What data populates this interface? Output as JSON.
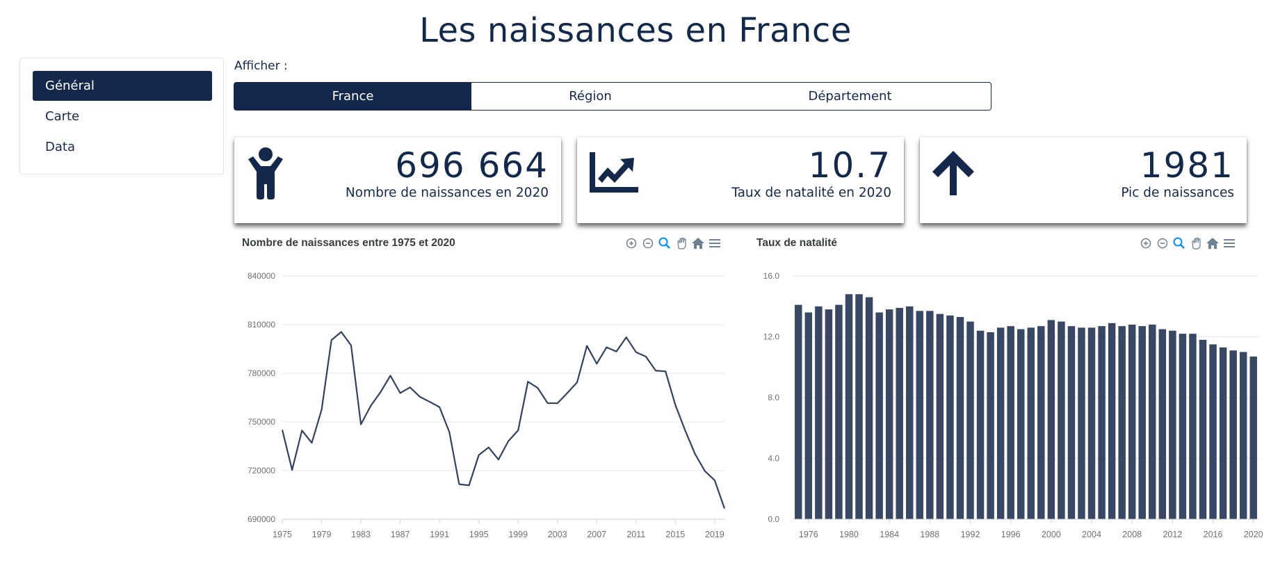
{
  "page_title": "Les naissances en France",
  "sidebar": {
    "items": [
      {
        "label": "Général",
        "active": true
      },
      {
        "label": "Carte",
        "active": false
      },
      {
        "label": "Data",
        "active": false
      }
    ]
  },
  "filter": {
    "label": "Afficher :",
    "options": [
      {
        "label": "France",
        "active": true
      },
      {
        "label": "Région",
        "active": false
      },
      {
        "label": "Département",
        "active": false
      }
    ]
  },
  "kpis": [
    {
      "value": "696 664",
      "label": "Nombre de naissances en 2020",
      "icon": "child-icon"
    },
    {
      "value": "10.7",
      "label": "Taux de natalité en 2020",
      "icon": "chart-line-icon"
    },
    {
      "value": "1981",
      "label": "Pic de naissances",
      "icon": "arrow-up-icon"
    }
  ],
  "colors": {
    "primary": "#13284a",
    "series": "#2f4260",
    "bars": "#384763",
    "grid": "#e6e6e6",
    "axis_text": "#6f6f6f",
    "toolbar": "#6e8192",
    "toolbar_active": "#008ffb"
  },
  "toolbar_icons": [
    "zoom-in-icon",
    "zoom-out-icon",
    "zoom-selection-icon",
    "pan-hand-icon",
    "reset-home-icon",
    "menu-icon"
  ],
  "chart_data": [
    {
      "type": "line",
      "title": "Nombre de naissances entre 1975 et 2020",
      "xlabel": "",
      "ylabel": "",
      "x": [
        1975,
        1976,
        1977,
        1978,
        1979,
        1980,
        1981,
        1982,
        1983,
        1984,
        1985,
        1986,
        1987,
        1988,
        1989,
        1990,
        1991,
        1992,
        1993,
        1994,
        1995,
        1996,
        1997,
        1998,
        1999,
        2000,
        2001,
        2002,
        2003,
        2004,
        2005,
        2006,
        2007,
        2008,
        2009,
        2010,
        2011,
        2012,
        2013,
        2014,
        2015,
        2016,
        2017,
        2018,
        2019,
        2020
      ],
      "x_ticks": [
        1975,
        1979,
        1983,
        1987,
        1991,
        1995,
        1999,
        2003,
        2007,
        2011,
        2015,
        2019
      ],
      "series": [
        {
          "values": [
            745100,
            720400,
            744700,
            737100,
            757400,
            800400,
            805500,
            797200,
            748500,
            759900,
            768400,
            778500,
            767800,
            771300,
            765500,
            762400,
            759100,
            743700,
            711600,
            710900,
            729600,
            734300,
            726800,
            738100,
            744800,
            774800,
            770900,
            761600,
            761500,
            767800,
            774400,
            796900,
            785900,
            796000,
            793400,
            802200,
            792996,
            790290,
            781621,
            781167,
            760421,
            744697,
            730242,
            719737,
            713992,
            696664
          ]
        }
      ],
      "ylim": [
        690000,
        840000
      ],
      "y_ticks": [
        690000,
        720000,
        750000,
        780000,
        810000,
        840000
      ],
      "grid": true
    },
    {
      "type": "bar",
      "title": "Taux de natalité",
      "xlabel": "",
      "ylabel": "",
      "categories": [
        1975,
        1976,
        1977,
        1978,
        1979,
        1980,
        1981,
        1982,
        1983,
        1984,
        1985,
        1986,
        1987,
        1988,
        1989,
        1990,
        1991,
        1992,
        1993,
        1994,
        1995,
        1996,
        1997,
        1998,
        1999,
        2000,
        2001,
        2002,
        2003,
        2004,
        2005,
        2006,
        2007,
        2008,
        2009,
        2010,
        2011,
        2012,
        2013,
        2014,
        2015,
        2016,
        2017,
        2018,
        2019,
        2020
      ],
      "x_ticks": [
        1976,
        1980,
        1984,
        1988,
        1992,
        1996,
        2000,
        2004,
        2008,
        2012,
        2016,
        2020
      ],
      "series": [
        {
          "values": [
            14.1,
            13.6,
            14.0,
            13.8,
            14.1,
            14.8,
            14.8,
            14.6,
            13.6,
            13.8,
            13.9,
            14.0,
            13.7,
            13.7,
            13.5,
            13.4,
            13.3,
            13.0,
            12.4,
            12.3,
            12.6,
            12.7,
            12.5,
            12.6,
            12.7,
            13.1,
            13.0,
            12.7,
            12.6,
            12.6,
            12.7,
            12.9,
            12.7,
            12.8,
            12.7,
            12.8,
            12.5,
            12.4,
            12.2,
            12.2,
            11.8,
            11.5,
            11.3,
            11.1,
            11.0,
            10.7
          ]
        }
      ],
      "ylim": [
        0,
        16
      ],
      "y_ticks": [
        "0.0",
        "4.0",
        "8.0",
        "12.0",
        "16.0"
      ],
      "grid": true
    }
  ]
}
